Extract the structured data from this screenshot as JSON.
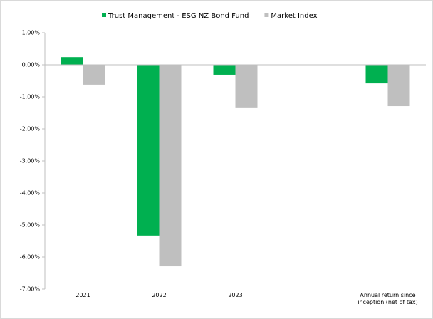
{
  "chart_data": {
    "type": "bar",
    "categories": [
      "2021",
      "2022",
      "2023",
      null,
      "Annual return since inception (net of tax)"
    ],
    "series": [
      {
        "name": "Trust Management - ESG NZ Bond Fund",
        "color": "#00b050",
        "values": [
          0.24,
          -5.33,
          -0.31,
          null,
          -0.58
        ]
      },
      {
        "name": "Market Index",
        "color": "#bfbfbf",
        "values": [
          -0.62,
          -6.29,
          -1.33,
          null,
          -1.29
        ]
      }
    ],
    "ylim": [
      -7,
      1
    ],
    "yticks": [
      {
        "value": 1,
        "label": "1.00%"
      },
      {
        "value": 0,
        "label": "0.00%"
      },
      {
        "value": -1,
        "label": "-1.00%"
      },
      {
        "value": -2,
        "label": "-2.00%"
      },
      {
        "value": -3,
        "label": "-3.00%"
      },
      {
        "value": -4,
        "label": "-4.00%"
      },
      {
        "value": -5,
        "label": "-5.00%"
      },
      {
        "value": -6,
        "label": "-6.00%"
      },
      {
        "value": -7,
        "label": "-7.00%"
      }
    ],
    "legend": "top",
    "grid": false
  }
}
